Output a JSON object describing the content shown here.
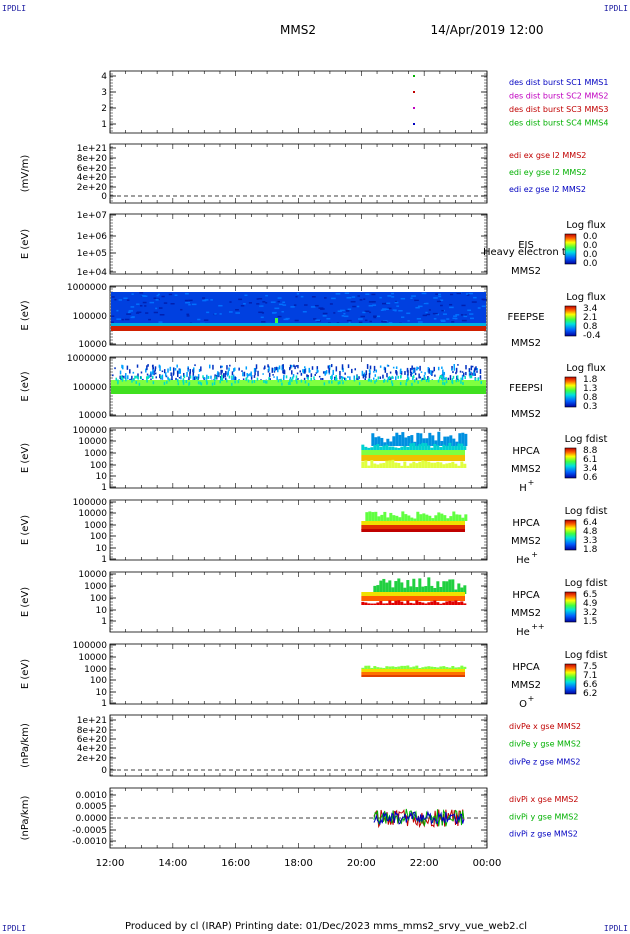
{
  "header": {
    "corner_left": "IPDLI",
    "corner_right": "IPDLI",
    "spacecraft": "MMS2",
    "datetime": "14/Apr/2019 12:00",
    "footer_left": "IPDLI",
    "footer_right": "IPDLI",
    "footer_text": "Produced by cl (IRAP)   Printing date: 01/Dec/2023   mms_mms2_srvy_vue_web2.cl"
  },
  "chart_data": [
    {
      "type": "scatter",
      "ylabel": "",
      "yticks": [
        "4",
        "3",
        "2",
        "1"
      ],
      "legend": [
        {
          "text": "des dist burst SC1 MMS1",
          "color": "#0000c0"
        },
        {
          "text": "des dist burst SC2 MMS2",
          "color": "#c000c0"
        },
        {
          "text": "des dist burst SC3 MMS3",
          "color": "#c00000"
        },
        {
          "text": "des dist burst SC4 MMS4",
          "color": "#00b000"
        }
      ]
    },
    {
      "type": "line",
      "ylabel": "(mV/m)",
      "yticks": [
        "1e+21",
        "8e+20",
        "6e+20",
        "4e+20",
        "2e+20",
        "0"
      ],
      "legend": [
        {
          "text": "edi ex gse l2 MMS2",
          "color": "#c00000"
        },
        {
          "text": "edi ey gse l2 MMS2",
          "color": "#00b000"
        },
        {
          "text": "edi ez gse l2 MMS2",
          "color": "#0000c0"
        }
      ]
    },
    {
      "type": "heatmap",
      "ylabel": "E (eV)",
      "yticks": [
        "1e+07",
        "1e+06",
        "1e+05",
        "1e+04"
      ],
      "instrument": "EIS",
      "instrument_overlay": "Heavy electron tof",
      "spacecraft": "MMS2",
      "colorbar_title": "Log flux",
      "colorbar_ticks": [
        "0.0",
        "0.0",
        "0.0",
        "0.0"
      ]
    },
    {
      "type": "heatmap",
      "ylabel": "E (eV)",
      "yticks": [
        "1000000",
        "100000",
        "10000"
      ],
      "instrument": "FEEPSE",
      "spacecraft": "MMS2",
      "colorbar_title": "Log flux",
      "colorbar_ticks": [
        "3.4",
        "2.1",
        "0.8",
        "-0.4"
      ]
    },
    {
      "type": "heatmap",
      "ylabel": "E (eV)",
      "yticks": [
        "1000000",
        "100000",
        "10000"
      ],
      "instrument": "FEEPSI",
      "spacecraft": "MMS2",
      "colorbar_title": "Log flux",
      "colorbar_ticks": [
        "1.8",
        "1.3",
        "0.8",
        "0.3"
      ]
    },
    {
      "type": "heatmap",
      "ylabel": "E (eV)",
      "yticks": [
        "100000",
        "10000",
        "1000",
        "100",
        "10",
        "1"
      ],
      "instrument": "HPCA",
      "spacecraft": "MMS2",
      "species": "H",
      "species_charge": "+",
      "colorbar_title": "Log fdist",
      "colorbar_ticks": [
        "8.8",
        "6.1",
        "3.4",
        "0.6"
      ]
    },
    {
      "type": "heatmap",
      "ylabel": "E (eV)",
      "yticks": [
        "100000",
        "10000",
        "1000",
        "100",
        "10",
        "1"
      ],
      "instrument": "HPCA",
      "spacecraft": "MMS2",
      "species": "He",
      "species_charge": "+",
      "colorbar_title": "Log fdist",
      "colorbar_ticks": [
        "6.4",
        "4.8",
        "3.3",
        "1.8"
      ]
    },
    {
      "type": "heatmap",
      "ylabel": "E (eV)",
      "yticks": [
        "10000",
        "1000",
        "100",
        "10",
        "1"
      ],
      "instrument": "HPCA",
      "spacecraft": "MMS2",
      "species": "He",
      "species_charge": "++",
      "colorbar_title": "Log fdist",
      "colorbar_ticks": [
        "6.5",
        "4.9",
        "3.2",
        "1.5"
      ]
    },
    {
      "type": "heatmap",
      "ylabel": "E (eV)",
      "yticks": [
        "100000",
        "10000",
        "1000",
        "100",
        "10",
        "1"
      ],
      "instrument": "HPCA",
      "spacecraft": "MMS2",
      "species": "O",
      "species_charge": "+",
      "colorbar_title": "Log fdist",
      "colorbar_ticks": [
        "7.5",
        "7.1",
        "6.6",
        "6.2"
      ]
    },
    {
      "type": "line",
      "ylabel": "(nPa/km)",
      "yticks": [
        "1e+21",
        "8e+20",
        "6e+20",
        "4e+20",
        "2e+20",
        "0"
      ],
      "legend": [
        {
          "text": "divPe x gse MMS2",
          "color": "#c00000"
        },
        {
          "text": "divPe y gse MMS2",
          "color": "#00b000"
        },
        {
          "text": "divPe z gse MMS2",
          "color": "#0000c0"
        }
      ]
    },
    {
      "type": "line",
      "ylabel": "(nPa/km)",
      "yticks": [
        "0.0010",
        "0.0005",
        "0.0000",
        "-0.0005",
        "-0.0010"
      ],
      "legend": [
        {
          "text": "divPi x gse MMS2",
          "color": "#c00000"
        },
        {
          "text": "divPi y gse MMS2",
          "color": "#00b000"
        },
        {
          "text": "divPi z gse MMS2",
          "color": "#0000c0"
        }
      ]
    }
  ],
  "xaxis": {
    "ticks": [
      "12:00",
      "14:00",
      "16:00",
      "18:00",
      "20:00",
      "22:00",
      "00:00"
    ]
  }
}
